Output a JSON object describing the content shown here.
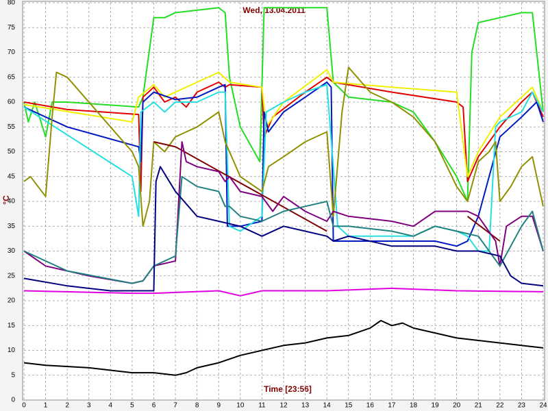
{
  "chart_data": {
    "type": "line",
    "title": "Wed, 13.04.2011",
    "x_label": "Time [23:56]",
    "y_label": "°C",
    "xlim": [
      0,
      24
    ],
    "ylim": [
      0,
      80
    ],
    "xticks": [
      0,
      1,
      2,
      3,
      4,
      5,
      6,
      7,
      8,
      9,
      10,
      11,
      12,
      13,
      14,
      15,
      16,
      17,
      18,
      19,
      20,
      21,
      22,
      23,
      24
    ],
    "yticks": [
      0,
      5,
      10,
      15,
      20,
      25,
      30,
      35,
      40,
      45,
      50,
      55,
      60,
      65,
      70,
      75,
      80
    ],
    "grid": true,
    "series": [
      {
        "color": "#22dd22",
        "x": [
          0,
          0.2,
          0.5,
          1,
          1.3,
          2,
          5.3,
          5.5,
          6,
          6.5,
          7,
          9,
          9.3,
          9.5,
          10,
          10.9,
          11.1,
          14,
          14.3,
          15,
          17,
          18,
          19,
          20,
          20.5,
          20.7,
          21,
          22,
          23,
          23.5,
          24
        ],
        "values": [
          60,
          56,
          60,
          53,
          60,
          60,
          59,
          61,
          77,
          77,
          78,
          79,
          78,
          65,
          55,
          48,
          79,
          79,
          64,
          61,
          60,
          58,
          52,
          45,
          40,
          70,
          76,
          77,
          78,
          78,
          58
        ]
      },
      {
        "color": "#e00000",
        "x": [
          0,
          2,
          5.3,
          5.4,
          5.5,
          6,
          6.5,
          7,
          7.5,
          8,
          9,
          9.3,
          9.5,
          11,
          11.1,
          11.5,
          13,
          14,
          14.3,
          17,
          20,
          20.3,
          20.5,
          21,
          22,
          23,
          23.5,
          24
        ],
        "values": [
          60,
          58.5,
          57.5,
          42,
          61,
          63,
          60,
          61,
          59,
          62,
          64,
          63,
          63.5,
          63,
          53,
          57,
          62,
          65,
          64,
          62,
          60,
          59,
          44,
          49,
          55,
          60,
          62,
          57
        ]
      },
      {
        "color": "#f0f000",
        "x": [
          0,
          5,
          5.3,
          6,
          6.5,
          7,
          9,
          9.5,
          11,
          11.2,
          12,
          14,
          14.3,
          17,
          20,
          20.5,
          21,
          22,
          23,
          23.5,
          24
        ],
        "values": [
          59.5,
          56,
          61,
          63.5,
          61,
          62,
          66,
          64,
          63,
          55,
          60,
          66.5,
          64,
          63,
          62,
          45,
          50,
          57,
          61,
          63,
          58
        ]
      },
      {
        "color": "#0018c0",
        "x": [
          0,
          2,
          5.3,
          5.4,
          5.5,
          6,
          7,
          8,
          9,
          9.3,
          9.4,
          10,
          11,
          11.1,
          11.3,
          12,
          13,
          14,
          14.2,
          14.3,
          17,
          19,
          20,
          20.5,
          21,
          22,
          23,
          23.7,
          24
        ],
        "values": [
          59,
          55,
          51,
          48,
          60,
          62,
          60.5,
          61,
          63,
          63.5,
          35,
          35,
          36,
          58,
          54,
          58,
          61,
          64,
          63,
          32,
          32,
          32,
          31,
          32,
          37,
          53,
          57,
          60,
          56
        ]
      },
      {
        "color": "#22e0e0",
        "x": [
          0,
          5,
          5.3,
          5.4,
          6,
          6.5,
          7,
          8,
          9,
          9.3,
          9.5,
          10,
          11,
          11.2,
          12,
          13,
          14,
          14.3,
          14.5,
          15,
          17,
          18,
          19,
          20,
          20.5,
          21,
          21.5,
          21.8,
          22,
          23,
          23.5,
          24
        ],
        "values": [
          59,
          45,
          37,
          58,
          60,
          58,
          60,
          60,
          62,
          62,
          35,
          34,
          37,
          58,
          60,
          62,
          63.5,
          47,
          35,
          33,
          33,
          33,
          35,
          34,
          33,
          30,
          30,
          55,
          56,
          58,
          62,
          58
        ]
      },
      {
        "color": "#909000",
        "x": [
          0,
          0.3,
          1,
          1.3,
          1.5,
          2,
          3,
          4,
          5,
          5.3,
          5.5,
          5.8,
          6,
          6.5,
          7,
          7.5,
          8,
          9,
          9.3,
          10,
          11,
          11.3,
          12,
          13,
          14,
          14.3,
          14.7,
          15,
          16,
          17,
          18,
          19,
          20,
          20.5,
          21,
          21.5,
          21.8,
          22,
          22.5,
          23,
          23.5,
          24
        ],
        "values": [
          44,
          45,
          41,
          57,
          66,
          65,
          60,
          55,
          50,
          47,
          35,
          40,
          52,
          50,
          53,
          54,
          55,
          58,
          52,
          45,
          42,
          47,
          49,
          52,
          54,
          37,
          58,
          67,
          62,
          60,
          57,
          52,
          43,
          40,
          48,
          50,
          52,
          40,
          43,
          47,
          49,
          39
        ]
      },
      {
        "color": "#800000",
        "x": [
          6,
          7,
          14
        ],
        "values": [
          52,
          51,
          34
        ]
      },
      {
        "color": "#800000",
        "x": [
          20.5,
          22
        ],
        "values": [
          37,
          32
        ]
      },
      {
        "color": "#800080",
        "x": [
          0,
          1,
          3,
          5,
          5.5,
          6,
          7,
          7.3,
          7.5,
          8,
          9,
          9.3,
          9.5,
          10,
          11,
          11.5,
          12,
          13,
          14,
          14.3,
          15,
          17,
          18,
          19,
          20,
          20.5,
          21,
          21.8,
          22,
          22.3,
          23,
          23.5,
          24
        ],
        "values": [
          30,
          27,
          25,
          23.5,
          24,
          27,
          28,
          52,
          48,
          47,
          46,
          44,
          45,
          42,
          41,
          38,
          41,
          38,
          36,
          38,
          37,
          36,
          35,
          38,
          38,
          38,
          37,
          32,
          27,
          35,
          37,
          37,
          30
        ]
      },
      {
        "color": "#208080",
        "x": [
          0,
          2,
          5,
          5.5,
          6,
          7,
          7.3,
          8,
          9,
          9.3,
          9.5,
          10,
          11,
          12,
          13,
          14,
          14.3,
          15,
          17,
          18,
          19,
          20,
          21,
          22,
          23,
          23.5,
          24
        ],
        "values": [
          30,
          26,
          23.5,
          24,
          27,
          29,
          45,
          43,
          42,
          39,
          39,
          37,
          36,
          38,
          39,
          40,
          35,
          35,
          34,
          33,
          35,
          34,
          33,
          27,
          35,
          38,
          30
        ]
      },
      {
        "color": "#000080",
        "x": [
          0,
          2,
          4,
          6,
          6.1,
          6.3,
          7,
          8,
          9,
          10,
          11,
          12,
          13,
          14,
          14.3,
          15,
          17,
          19,
          20,
          21,
          22,
          22.5,
          23,
          24
        ],
        "values": [
          24.5,
          23,
          22,
          22,
          44,
          47,
          42,
          37,
          36,
          35,
          33,
          35,
          34,
          33,
          32,
          33,
          31,
          31,
          30,
          30,
          29,
          25,
          23.5,
          23
        ]
      },
      {
        "color": "#e000e0",
        "x": [
          0,
          5,
          6,
          9,
          10,
          11,
          14,
          17,
          20,
          24
        ],
        "values": [
          22,
          21.5,
          21.5,
          22,
          21,
          22,
          22,
          22.5,
          22,
          21.8
        ]
      },
      {
        "color": "#000000",
        "x": [
          0,
          1,
          3,
          5,
          6,
          7,
          7.5,
          8,
          9,
          10,
          11,
          12,
          13,
          14,
          15,
          16,
          16.5,
          17,
          17.5,
          18,
          19,
          20,
          21,
          22,
          23,
          24
        ],
        "values": [
          7.5,
          7,
          6.5,
          5.5,
          5.5,
          5,
          5.5,
          6.5,
          7.5,
          9,
          10,
          11,
          11.5,
          12.5,
          13,
          14.5,
          16,
          15,
          15.5,
          14.5,
          13.5,
          12.5,
          12,
          11.5,
          11,
          10.5
        ]
      }
    ]
  }
}
